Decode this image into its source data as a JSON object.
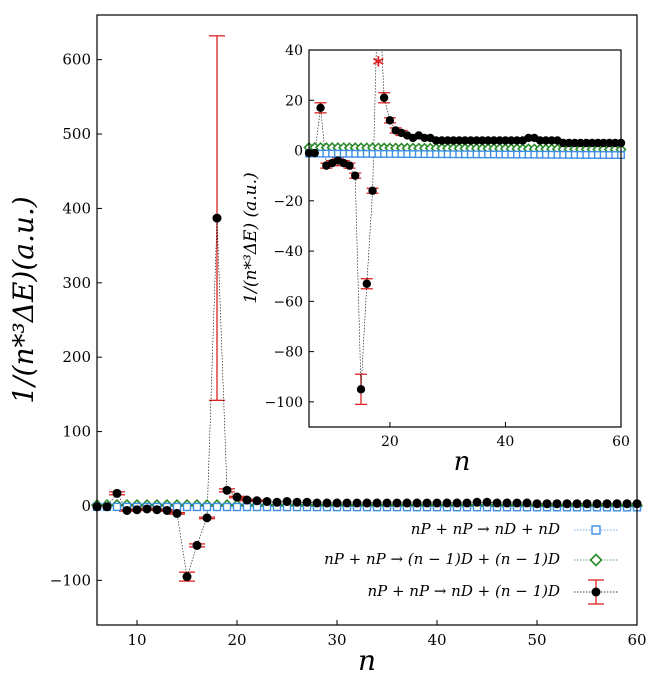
{
  "chart_data": [
    {
      "id": "main",
      "type": "scatter",
      "title": "",
      "xlabel": "n",
      "ylabel": "1/(n*³ΔE)(a.u.)",
      "xlim": [
        6,
        60
      ],
      "ylim": [
        -160,
        660
      ],
      "xticks": [
        10,
        20,
        30,
        40,
        50,
        60
      ],
      "yticks": [
        -100,
        0,
        100,
        200,
        300,
        400,
        500,
        600
      ],
      "ytick_labels": [
        "−100",
        "0",
        "100",
        "200",
        "300",
        "400",
        "500",
        "600"
      ],
      "grid": false,
      "legend_location": "lower-right",
      "legend": [
        {
          "label": "nP + nP → nD + nD",
          "series": "nDnD"
        },
        {
          "label": "nP + nP → (n − 1)D + (n − 1)D",
          "series": "n1Dn1D"
        },
        {
          "label": "nP + nP → nD + (n − 1)D",
          "series": "nDn1D"
        }
      ],
      "series": [
        {
          "name": "nDnD",
          "marker": "square",
          "color": "#3d8fe6",
          "x_start": 6,
          "x_end": 60,
          "y_start": -1.2,
          "y_end": -1.8
        },
        {
          "name": "n1Dn1D",
          "marker": "diamond",
          "color": "#2a8a2a",
          "x_start": 6,
          "x_end": 60,
          "y_start": 1.2,
          "y_end": 0.4
        },
        {
          "name": "nDn1D",
          "marker": "circle",
          "color": "#000000",
          "errorbar_color": "#dd2222",
          "x": [
            6,
            7,
            8,
            9,
            10,
            11,
            12,
            13,
            14,
            15,
            16,
            17,
            18,
            19,
            20,
            21,
            22,
            23,
            24,
            25,
            26,
            27,
            28,
            29,
            30,
            31,
            32,
            33,
            34,
            35,
            36,
            37,
            38,
            39,
            40,
            41,
            42,
            43,
            44,
            45,
            46,
            47,
            48,
            49,
            50,
            51,
            52,
            53,
            54,
            55,
            56,
            57,
            58,
            59,
            60
          ],
          "y": [
            -1,
            -1,
            17,
            -6,
            -5,
            -4,
            -5,
            -6,
            -10,
            -95,
            -53,
            -16,
            387,
            21,
            12,
            8,
            7,
            6,
            5,
            6,
            5,
            5,
            4,
            4,
            4,
            4,
            4,
            4,
            4,
            4,
            4,
            4,
            4,
            4,
            4,
            4,
            4,
            4,
            5,
            5,
            4,
            4,
            4,
            4,
            3,
            3,
            3,
            3,
            3,
            3,
            3,
            3,
            3,
            3,
            3
          ],
          "yerr_low": [
            0,
            0,
            2,
            1,
            1,
            1,
            1,
            1,
            1,
            6,
            2,
            1,
            245,
            2,
            1,
            1,
            1,
            0,
            0,
            0,
            0,
            0,
            0,
            0,
            0,
            0,
            0,
            0,
            0,
            0,
            0,
            0,
            0,
            0,
            0,
            0,
            0,
            0,
            0,
            0,
            0,
            0,
            0,
            0,
            0,
            0,
            0,
            0,
            0,
            0,
            0,
            0,
            0,
            0,
            0
          ],
          "yerr_high": [
            0,
            0,
            2,
            1,
            1,
            1,
            1,
            1,
            1,
            6,
            2,
            1,
            245,
            2,
            1,
            1,
            1,
            0,
            0,
            0,
            0,
            0,
            0,
            0,
            0,
            0,
            0,
            0,
            0,
            0,
            0,
            0,
            0,
            0,
            0,
            0,
            0,
            0,
            0,
            0,
            0,
            0,
            0,
            0,
            0,
            0,
            0,
            0,
            0,
            0,
            0,
            0,
            0,
            0,
            0
          ]
        }
      ]
    },
    {
      "id": "inset",
      "type": "scatter",
      "title": "",
      "xlabel": "n",
      "ylabel": "1/(n*³ΔE) (a.u.)",
      "xlim": [
        6,
        60
      ],
      "ylim": [
        -110,
        40
      ],
      "xticks": [
        20,
        40,
        60
      ],
      "yticks": [
        -100,
        -80,
        -60,
        -40,
        -20,
        0,
        20,
        40
      ],
      "ytick_labels": [
        "−100",
        "−80",
        "−60",
        "−40",
        "−20",
        "0",
        "20",
        "40"
      ],
      "grid": false,
      "annotation": {
        "text": "*",
        "x": 18,
        "y": 35,
        "color": "#dd2222"
      },
      "series_ref": "main"
    }
  ],
  "legend_sample_markers": {
    "square": "nDnD",
    "diamond": "n1Dn1D",
    "circle": "nDn1D"
  }
}
